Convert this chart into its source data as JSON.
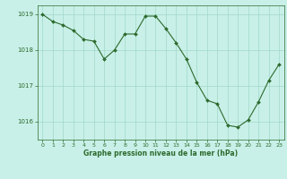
{
  "x": [
    0,
    1,
    2,
    3,
    4,
    5,
    6,
    7,
    8,
    9,
    10,
    11,
    12,
    13,
    14,
    15,
    16,
    17,
    18,
    19,
    20,
    21,
    22,
    23
  ],
  "y": [
    1019.0,
    1018.8,
    1018.7,
    1018.55,
    1018.3,
    1018.25,
    1017.75,
    1018.0,
    1018.45,
    1018.45,
    1018.95,
    1018.95,
    1018.6,
    1018.2,
    1017.75,
    1017.1,
    1016.6,
    1016.5,
    1015.9,
    1015.85,
    1016.05,
    1016.55,
    1017.15,
    1017.6
  ],
  "line_color": "#2d6a2d",
  "marker_color": "#2d6a2d",
  "bg_color": "#c8f0e8",
  "grid_color": "#a0d8c8",
  "xlabel": "Graphe pression niveau de la mer (hPa)",
  "xlabel_color": "#2d6a2d",
  "tick_color": "#2d6a2d",
  "ylim": [
    1015.5,
    1019.25
  ],
  "yticks": [
    1016,
    1017,
    1018,
    1019
  ],
  "xticks": [
    0,
    1,
    2,
    3,
    4,
    5,
    6,
    7,
    8,
    9,
    10,
    11,
    12,
    13,
    14,
    15,
    16,
    17,
    18,
    19,
    20,
    21,
    22,
    23
  ]
}
